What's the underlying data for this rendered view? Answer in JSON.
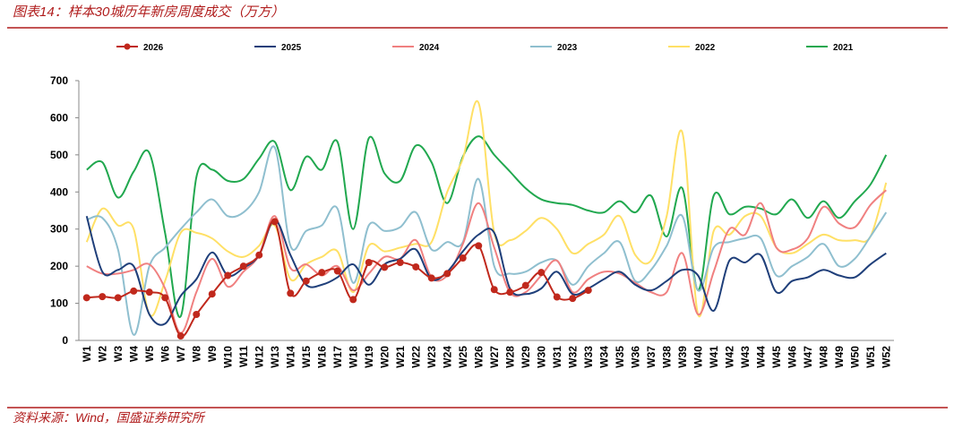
{
  "chart_data": {
    "type": "line",
    "title": "图表14：样本30城历年新房周度成交（万方）",
    "source": "资料来源：Wind，国盛证券研究所",
    "categories": [
      "W1",
      "W2",
      "W3",
      "W4",
      "W5",
      "W6",
      "W7",
      "W8",
      "W9",
      "W10",
      "W11",
      "W12",
      "W13",
      "W14",
      "W15",
      "W16",
      "W17",
      "W18",
      "W19",
      "W20",
      "W21",
      "W22",
      "W23",
      "W24",
      "W25",
      "W26",
      "W27",
      "W28",
      "W29",
      "W30",
      "W31",
      "W32",
      "W33",
      "W34",
      "W35",
      "W36",
      "W37",
      "W38",
      "W39",
      "W40",
      "W41",
      "W42",
      "W43",
      "W44",
      "W45",
      "W46",
      "W47",
      "W48",
      "W49",
      "W50",
      "W51",
      "W52"
    ],
    "ylim": [
      0,
      700
    ],
    "yticks": [
      0,
      100,
      200,
      300,
      400,
      500,
      600,
      700
    ],
    "series": [
      {
        "name": "2026",
        "color": "#c0281c",
        "markers": true,
        "values": [
          115,
          118,
          115,
          133,
          130,
          115,
          12,
          70,
          125,
          175,
          200,
          230,
          320,
          127,
          160,
          183,
          187,
          110,
          210,
          197,
          210,
          198,
          168,
          180,
          222,
          255,
          137,
          130,
          148,
          183,
          117,
          113,
          135,
          null,
          null,
          null,
          null,
          null,
          null,
          null,
          null,
          null,
          null,
          null,
          null,
          null,
          null,
          null,
          null,
          null,
          null,
          null
        ]
      },
      {
        "name": "2025",
        "color": "#1f3f7a",
        "values": [
          335,
          185,
          190,
          200,
          70,
          45,
          120,
          165,
          237,
          175,
          195,
          230,
          325,
          230,
          150,
          150,
          170,
          205,
          150,
          205,
          220,
          245,
          165,
          185,
          240,
          285,
          290,
          140,
          125,
          140,
          185,
          125,
          140,
          165,
          185,
          150,
          135,
          160,
          190,
          175,
          80,
          215,
          210,
          230,
          130,
          160,
          170,
          190,
          175,
          170,
          205,
          235
        ]
      },
      {
        "name": "2024",
        "color": "#f08080",
        "values": [
          200,
          180,
          180,
          190,
          205,
          140,
          20,
          130,
          220,
          145,
          185,
          230,
          335,
          195,
          205,
          175,
          200,
          135,
          180,
          225,
          220,
          270,
          170,
          175,
          260,
          370,
          250,
          130,
          130,
          175,
          215,
          130,
          165,
          185,
          180,
          155,
          130,
          130,
          235,
          70,
          185,
          300,
          285,
          370,
          250,
          245,
          275,
          360,
          315,
          305,
          365,
          405
        ]
      },
      {
        "name": "2023",
        "color": "#8fbfcf",
        "values": [
          325,
          330,
          245,
          15,
          200,
          250,
          300,
          345,
          380,
          335,
          345,
          400,
          520,
          255,
          295,
          310,
          355,
          155,
          310,
          295,
          305,
          345,
          245,
          265,
          265,
          435,
          200,
          180,
          185,
          210,
          215,
          150,
          200,
          235,
          265,
          160,
          190,
          255,
          335,
          135,
          250,
          265,
          275,
          275,
          175,
          200,
          225,
          260,
          200,
          220,
          280,
          345
        ]
      },
      {
        "name": "2022",
        "color": "#ffe066",
        "values": [
          265,
          355,
          310,
          300,
          70,
          160,
          290,
          290,
          275,
          240,
          225,
          255,
          310,
          165,
          205,
          225,
          240,
          130,
          255,
          240,
          250,
          260,
          265,
          400,
          490,
          640,
          290,
          270,
          295,
          330,
          300,
          235,
          260,
          285,
          335,
          230,
          215,
          335,
          560,
          70,
          295,
          285,
          335,
          335,
          250,
          235,
          260,
          285,
          270,
          270,
          280,
          425
        ]
      },
      {
        "name": "2021",
        "color": "#21a84f",
        "values": [
          460,
          480,
          385,
          455,
          505,
          290,
          65,
          440,
          460,
          430,
          435,
          490,
          535,
          405,
          495,
          460,
          535,
          300,
          545,
          450,
          430,
          525,
          480,
          370,
          495,
          550,
          500,
          455,
          410,
          380,
          370,
          365,
          350,
          345,
          375,
          345,
          390,
          280,
          410,
          135,
          390,
          340,
          360,
          355,
          340,
          380,
          330,
          375,
          330,
          375,
          420,
          500
        ]
      }
    ]
  }
}
